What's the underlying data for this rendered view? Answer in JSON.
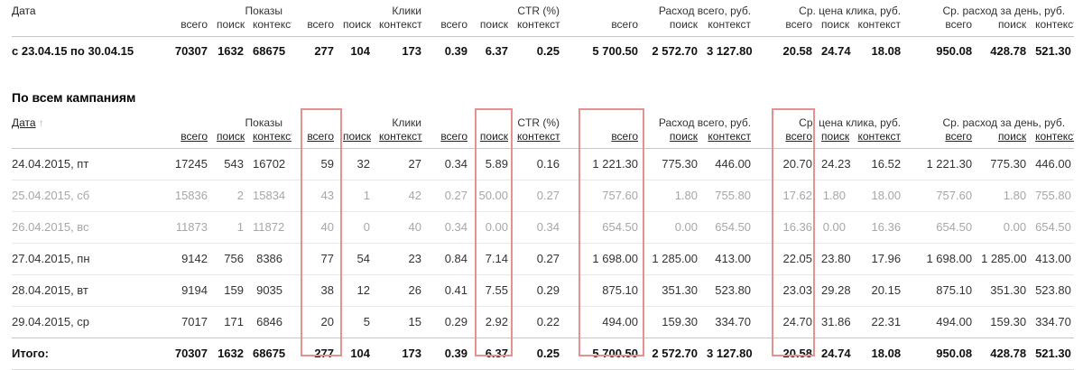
{
  "columns": {
    "date_label": "Дата",
    "groups": [
      "Показы",
      "Клики",
      "CTR (%)",
      "Расход всего, руб.",
      "Ср. цена клика, руб.",
      "Ср. расход за день, руб."
    ],
    "subs": [
      "всего",
      "поиск",
      "контекст"
    ]
  },
  "summary_table": {
    "row": {
      "date": "с 23.04.15 по 30.04.15",
      "values": [
        "70307",
        "1632",
        "68675",
        "277",
        "104",
        "173",
        "0.39",
        "6.37",
        "0.25",
        "5 700.50",
        "2 572.70",
        "3 127.80",
        "20.58",
        "24.74",
        "18.08",
        "950.08",
        "428.78",
        "521.30"
      ]
    }
  },
  "campaigns": {
    "title": "По всем кампаниям",
    "sort": {
      "column": "Дата",
      "direction_arrow": "↑"
    },
    "rows": [
      {
        "date": "24.04.2015, пт",
        "weekend": false,
        "values": [
          "17245",
          "543",
          "16702",
          "59",
          "32",
          "27",
          "0.34",
          "5.89",
          "0.16",
          "1 221.30",
          "775.30",
          "446.00",
          "20.70",
          "24.23",
          "16.52",
          "1 221.30",
          "775.30",
          "446.00"
        ]
      },
      {
        "date": "25.04.2015, сб",
        "weekend": true,
        "values": [
          "15836",
          "2",
          "15834",
          "43",
          "1",
          "42",
          "0.27",
          "50.00",
          "0.27",
          "757.60",
          "1.80",
          "755.80",
          "17.62",
          "1.80",
          "18.00",
          "757.60",
          "1.80",
          "755.80"
        ]
      },
      {
        "date": "26.04.2015, вс",
        "weekend": true,
        "values": [
          "11873",
          "1",
          "11872",
          "40",
          "0",
          "40",
          "0.34",
          "0.00",
          "0.34",
          "654.50",
          "0.00",
          "654.50",
          "16.36",
          "0.00",
          "16.36",
          "654.50",
          "0.00",
          "654.50"
        ]
      },
      {
        "date": "27.04.2015, пн",
        "weekend": false,
        "values": [
          "9142",
          "756",
          "8386",
          "77",
          "54",
          "23",
          "0.84",
          "7.14",
          "0.27",
          "1 698.00",
          "1 285.00",
          "413.00",
          "22.05",
          "23.80",
          "17.96",
          "1 698.00",
          "1 285.00",
          "413.00"
        ]
      },
      {
        "date": "28.04.2015, вт",
        "weekend": false,
        "values": [
          "9194",
          "159",
          "9035",
          "38",
          "12",
          "26",
          "0.41",
          "7.55",
          "0.29",
          "875.10",
          "351.30",
          "523.80",
          "23.03",
          "29.28",
          "20.15",
          "875.10",
          "351.30",
          "523.80"
        ]
      },
      {
        "date": "29.04.2015, ср",
        "weekend": false,
        "values": [
          "7017",
          "171",
          "6846",
          "20",
          "5",
          "15",
          "0.29",
          "2.92",
          "0.22",
          "494.00",
          "159.30",
          "334.70",
          "24.70",
          "31.86",
          "22.31",
          "494.00",
          "159.30",
          "334.70"
        ]
      }
    ],
    "totals": {
      "date": "Итого:",
      "values": [
        "70307",
        "1632",
        "68675",
        "277",
        "104",
        "173",
        "0.39",
        "6.37",
        "0.25",
        "5 700.50",
        "2 572.70",
        "3 127.80",
        "20.58",
        "24.74",
        "18.08",
        "950.08",
        "428.78",
        "521.30"
      ]
    }
  },
  "highlight": {
    "color": "#e5928f",
    "highlighted_columns": [
      "Клики всего",
      "CTR (%) поиск",
      "Расход всего, руб. всего",
      "Ср. цена клика, руб. всего"
    ]
  }
}
